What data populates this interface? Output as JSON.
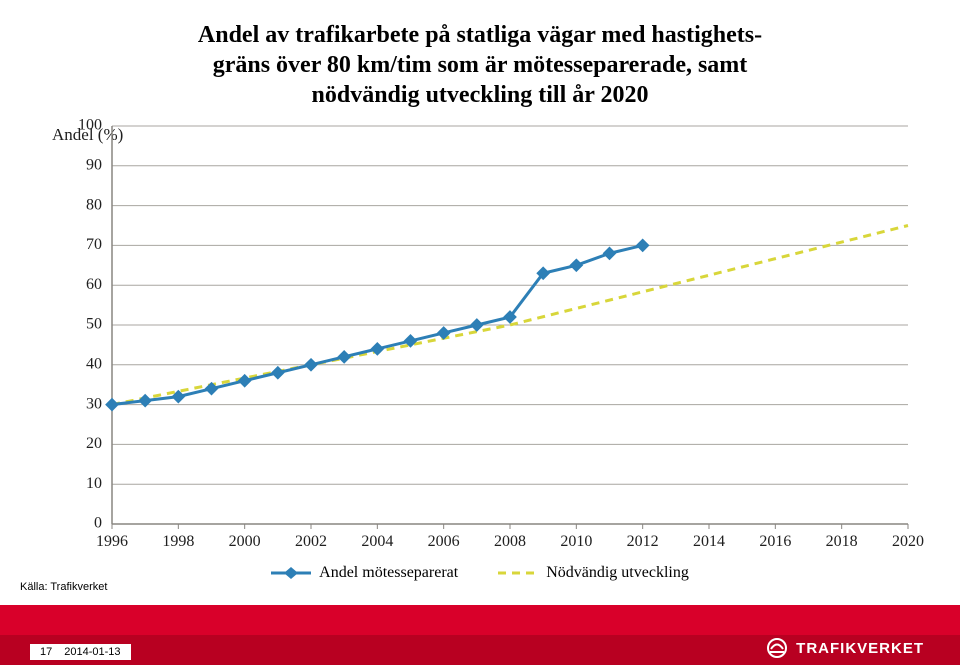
{
  "title": {
    "line1": "Andel av trafikarbete på statliga vägar med hastighets-",
    "line2": "gräns över 80 km/tim som är mötesseparerade, samt",
    "line3": "nödvändig utveckling till år 2020",
    "fontsize": 24,
    "color": "#000000"
  },
  "chart": {
    "type": "line",
    "background_color": "#ffffff",
    "grid_color": "#a8a6a0",
    "axis_color": "#888580",
    "ylabel": "Andel (%)",
    "ylabel_fontsize": 17,
    "ylim": [
      0,
      100
    ],
    "ytick_step": 10,
    "yticks": [
      0,
      10,
      20,
      30,
      40,
      50,
      60,
      70,
      80,
      90,
      100
    ],
    "xticks": [
      1996,
      1998,
      2000,
      2002,
      2004,
      2006,
      2008,
      2010,
      2012,
      2014,
      2016,
      2018,
      2020
    ],
    "xlim": [
      1996,
      2020
    ],
    "tick_fontsize": 16,
    "series": [
      {
        "name": "Andel mötesseparerat",
        "color": "#2d7fb6",
        "line_width": 3,
        "marker": "diamond",
        "marker_size": 8,
        "dash": "solid",
        "x": [
          1996,
          1997,
          1998,
          1999,
          2000,
          2001,
          2002,
          2003,
          2004,
          2005,
          2006,
          2007,
          2008,
          2009,
          2010,
          2011,
          2012
        ],
        "y": [
          30,
          31,
          32,
          34,
          36,
          38,
          40,
          42,
          44,
          46,
          48,
          50,
          52,
          63,
          65,
          68,
          70
        ]
      },
      {
        "name": "Nödvändig utveckling",
        "color": "#d8d63a",
        "line_width": 3,
        "marker": "none",
        "marker_size": 0,
        "dash": "8 6",
        "x": [
          1996,
          2008,
          2020
        ],
        "y": [
          30,
          50,
          75
        ]
      }
    ],
    "legend": {
      "items": [
        {
          "label": "Andel mötesseparerat",
          "color": "#2d7fb6",
          "marker": "diamond",
          "dash": "solid"
        },
        {
          "label": "Nödvändig utveckling",
          "color": "#d8d63a",
          "marker": "none",
          "dash": "8 6"
        }
      ],
      "fontsize": 16
    }
  },
  "source": {
    "text": "Källa: Trafikverket",
    "fontsize": 11
  },
  "footer": {
    "page_number": "17",
    "date": "2014-01-13",
    "band_light": "#d9002a",
    "band_dark": "#b80021",
    "logo_text": "TRAFIKVERKET",
    "logo_color": "#ffffff",
    "logo_fontsize": 15
  }
}
